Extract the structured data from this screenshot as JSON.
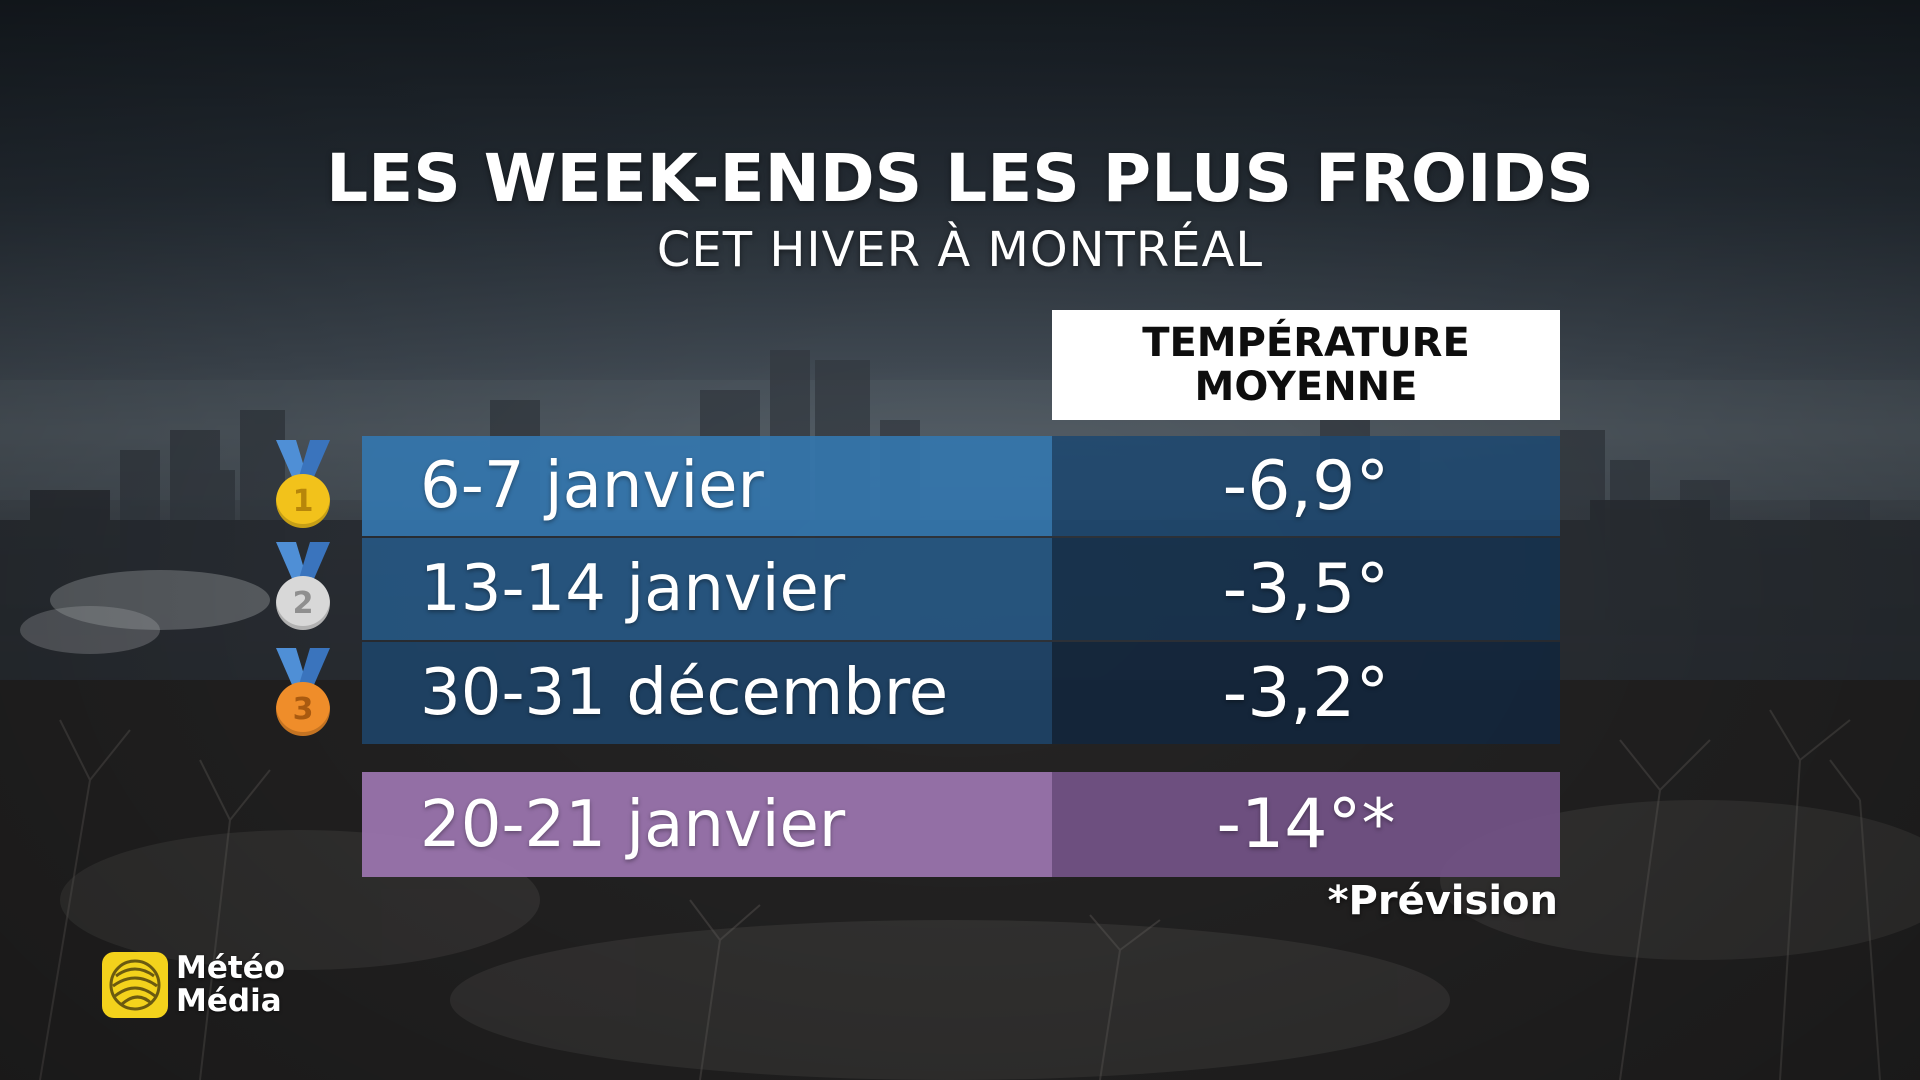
{
  "title": "LES WEEK-ENDS LES PLUS FROIDS",
  "subtitle": "CET HIVER À MONTRÉAL",
  "column_header": {
    "line1": "TEMPÉRATURE",
    "line2": "MOYENNE"
  },
  "rows": [
    {
      "medal": "1",
      "date": "6-7 janvier",
      "temperature": "-6,9°"
    },
    {
      "medal": "2",
      "date": "13-14 janvier",
      "temperature": "-3,5°"
    },
    {
      "medal": "3",
      "date": "30-31 décembre",
      "temperature": "-3,2°"
    },
    {
      "date": "20-21 janvier",
      "temperature": "-14°*"
    }
  ],
  "footnote": "*Prévision",
  "logo": {
    "line1": "Météo",
    "line2": "Média",
    "icon": "globe-logo-icon"
  },
  "colors": {
    "row_blue_light": "#3476ae",
    "row_blue_dark": "#1e4870",
    "row_purple_light": "#a078b4",
    "row_purple_dark": "#76548a",
    "medal_gold": "#f2c21b",
    "medal_silver": "#d8d8d8",
    "medal_bronze": "#ef8d2a",
    "ribbon_blue": "#4f8fd6",
    "logo_yellow": "#f3d21c"
  }
}
